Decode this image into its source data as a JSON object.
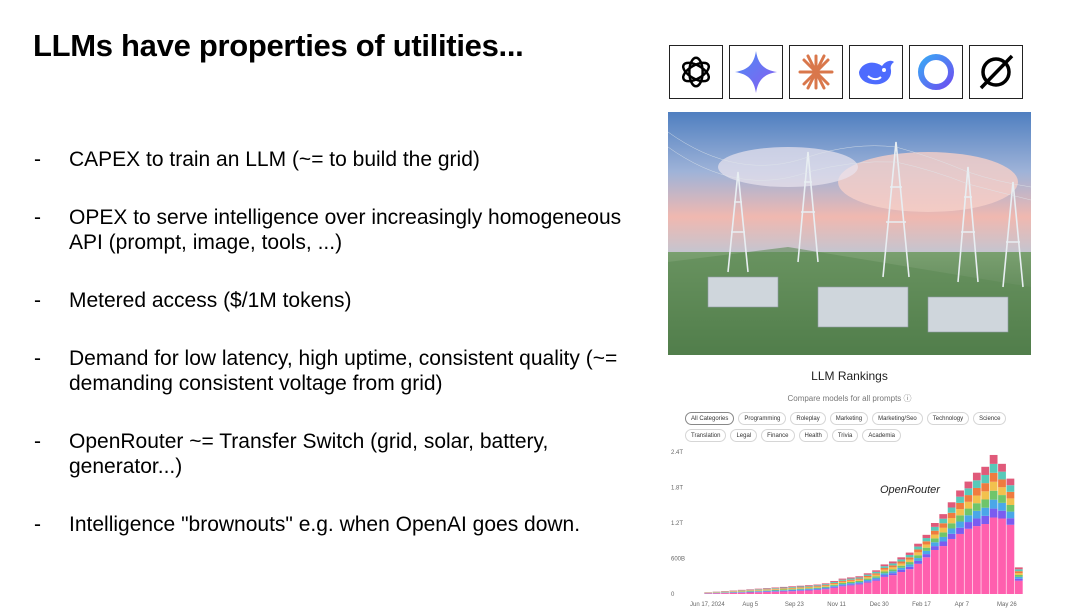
{
  "slide": {
    "title": "LLMs have properties of utilities...",
    "bullets": [
      "CAPEX to train an LLM (~= to build the grid)",
      "OPEX to serve intelligence over increasingly homogeneous API (prompt, image, tools, ...)",
      "Metered access ($/1M tokens)",
      "Demand for low latency, high uptime, consistent quality (~= demanding consistent voltage from grid)",
      "OpenRouter ~= Transfer Switch (grid, solar, battery, generator...)",
      "Intelligence \"brownouts\" e.g. when OpenAI goes down."
    ],
    "bullet_marker": "-"
  },
  "logos": [
    {
      "icon": "openai-logo-icon"
    },
    {
      "icon": "gemini-logo-icon"
    },
    {
      "icon": "anthropic-logo-icon"
    },
    {
      "icon": "deepseek-logo-icon"
    },
    {
      "icon": "ring-logo-icon"
    },
    {
      "icon": "grok-logo-icon"
    }
  ],
  "rankings": {
    "title": "LLM Rankings",
    "subtitle": "Compare models for all prompts ⓘ",
    "categories": [
      "All Categories",
      "Programming",
      "Roleplay",
      "Marketing",
      "Marketing/Seo",
      "Technology",
      "Science",
      "Translation",
      "Legal",
      "Finance",
      "Health",
      "Trivia",
      "Academia"
    ],
    "selected_category": "All Categories",
    "brand_label": "OpenRouter"
  },
  "chart_data": {
    "type": "bar",
    "stacked": true,
    "y_ticks": [
      "0",
      "600B",
      "1.2T",
      "1.8T",
      "2.4T"
    ],
    "x_ticks": [
      "Jun 17, 2024",
      "Aug 5",
      "Sep 23",
      "Nov 11",
      "Dec 30",
      "Feb 17",
      "Apr 7",
      "May 26"
    ],
    "ylim": [
      0,
      2.4
    ],
    "y_unit": "T tokens",
    "annotation": "OpenRouter",
    "colors": [
      "#ff5fae",
      "#7a5cf0",
      "#4aa7e8",
      "#6fc56b",
      "#f2c14e",
      "#f07b3f",
      "#58c9b9",
      "#e05a7a"
    ],
    "totals": [
      0.03,
      0.04,
      0.05,
      0.06,
      0.07,
      0.08,
      0.09,
      0.1,
      0.11,
      0.12,
      0.13,
      0.14,
      0.15,
      0.16,
      0.18,
      0.22,
      0.26,
      0.28,
      0.3,
      0.35,
      0.4,
      0.5,
      0.55,
      0.62,
      0.7,
      0.85,
      1.0,
      1.2,
      1.35,
      1.55,
      1.75,
      1.9,
      2.05,
      2.15,
      2.35,
      2.2,
      1.95,
      0.45
    ],
    "bottom_share": [
      0.3,
      0.3,
      0.3,
      0.3,
      0.32,
      0.32,
      0.34,
      0.35,
      0.35,
      0.36,
      0.36,
      0.38,
      0.4,
      0.42,
      0.45,
      0.48,
      0.5,
      0.52,
      0.54,
      0.55,
      0.56,
      0.58,
      0.58,
      0.6,
      0.6,
      0.6,
      0.62,
      0.62,
      0.6,
      0.6,
      0.58,
      0.58,
      0.56,
      0.55,
      0.55,
      0.58,
      0.6,
      0.5
    ]
  }
}
